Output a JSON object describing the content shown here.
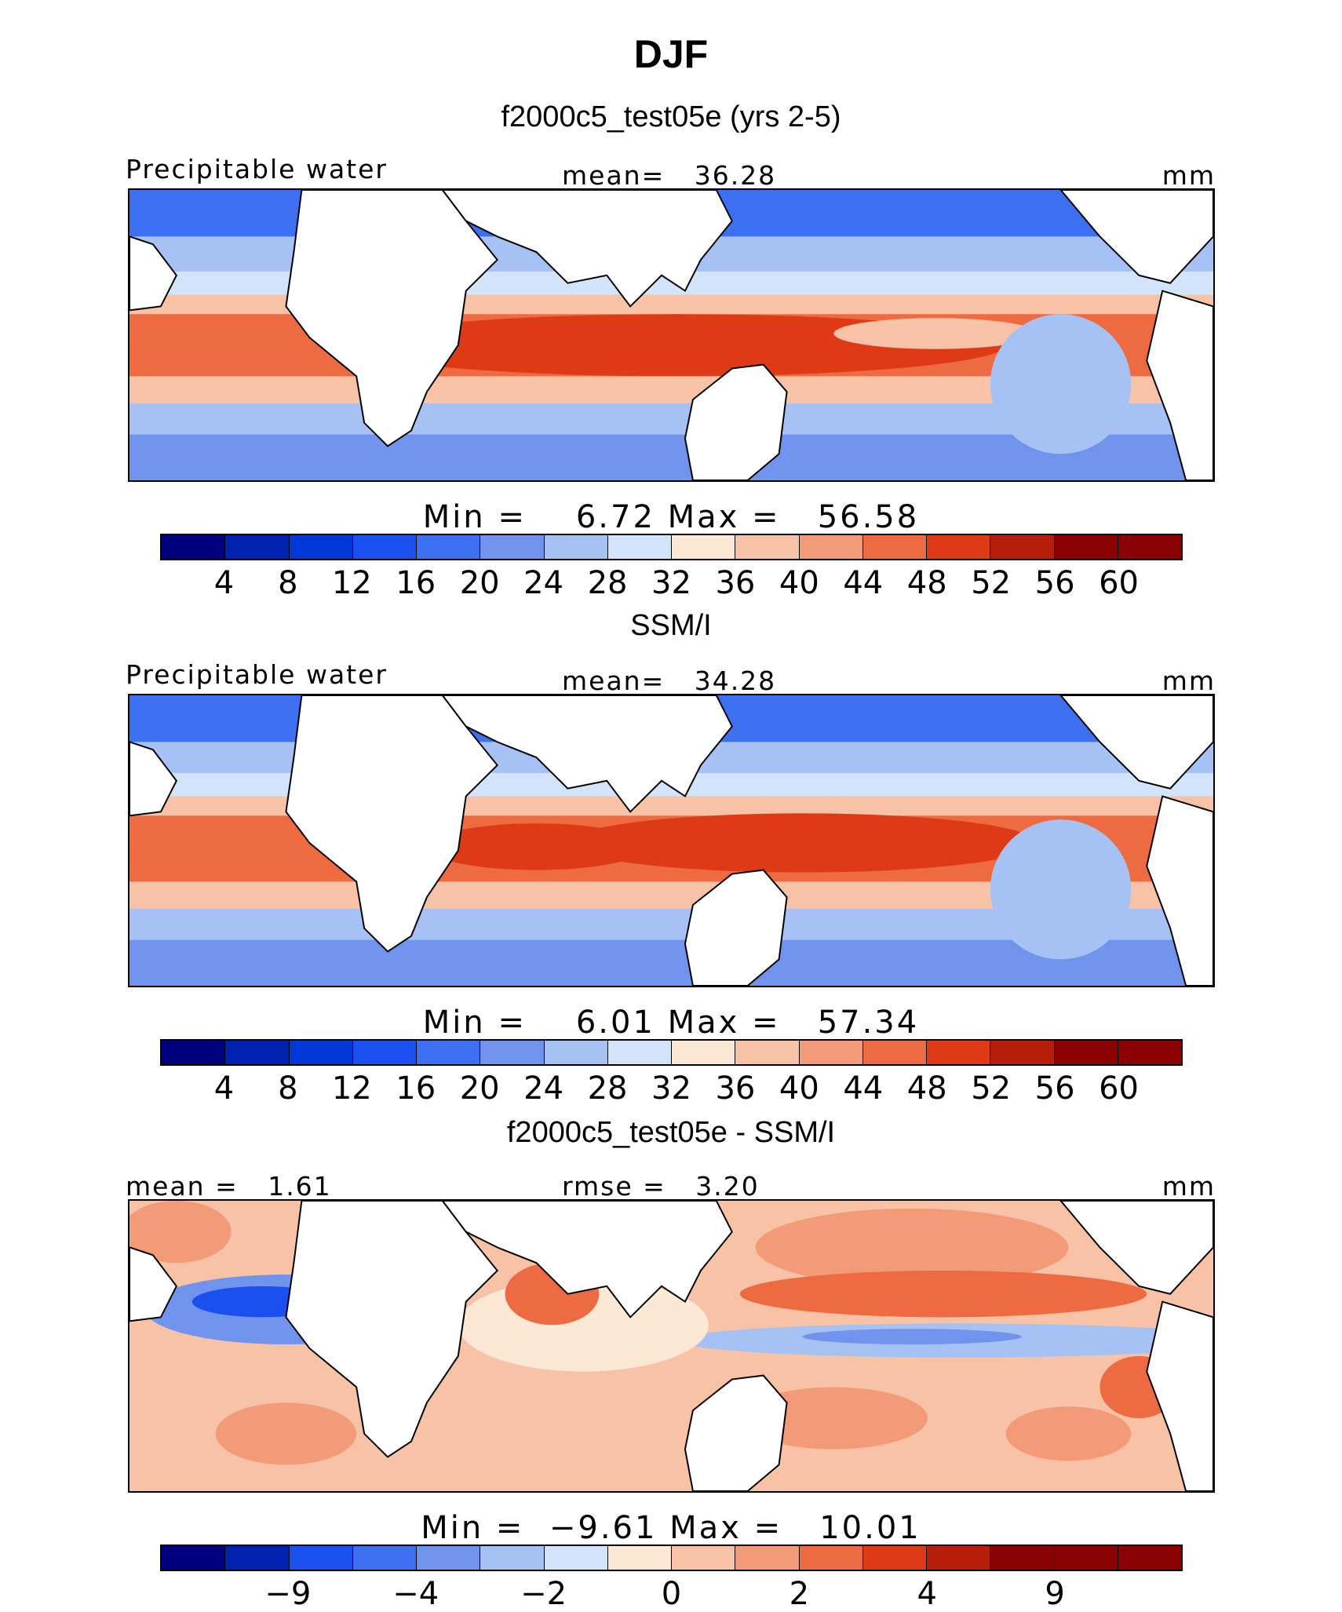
{
  "title": "DJF",
  "panels": [
    {
      "title": "f2000c5_test05e (yrs 2-5)",
      "left_label": "Precipitable water",
      "center_label": "mean=   36.28",
      "units": "mm",
      "minmax": "Min =    6.72 Max =   56.58",
      "colorbar_ticks": [
        "4",
        "8",
        "12",
        "16",
        "20",
        "24",
        "28",
        "32",
        "36",
        "40",
        "44",
        "48",
        "52",
        "56",
        "60"
      ]
    },
    {
      "title": "SSM/I",
      "left_label": "Precipitable water",
      "center_label": "mean=   34.28",
      "units": "mm",
      "minmax": "Min =    6.01 Max =   57.34",
      "colorbar_ticks": [
        "4",
        "8",
        "12",
        "16",
        "20",
        "24",
        "28",
        "32",
        "36",
        "40",
        "44",
        "48",
        "52",
        "56",
        "60"
      ]
    },
    {
      "title": "f2000c5_test05e - SSM/I",
      "left_label": "mean =   1.61",
      "center_label": "rmse =   3.20",
      "units": "mm",
      "minmax": "Min =  −9.61 Max =   10.01",
      "colorbar_ticks": [
        "−9",
        "−4",
        "−2",
        "0",
        "2",
        "4",
        "9"
      ]
    }
  ],
  "colors": {
    "colorbar": [
      "#00007f",
      "#0020b0",
      "#0038d8",
      "#1a50f0",
      "#3d70f0",
      "#7094ee",
      "#a6c2f5",
      "#d2e4fa",
      "#fde8d6",
      "#f8c2a6",
      "#f39a76",
      "#ee6a40",
      "#df3a16",
      "#b61e0a",
      "#8b0000"
    ],
    "land": "#ffffff"
  }
}
